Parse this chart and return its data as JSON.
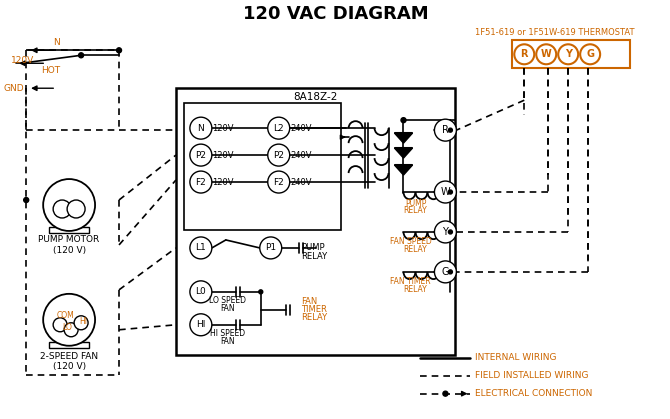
{
  "title": "120 VAC DIAGRAM",
  "title_color": "#000000",
  "title_fontsize": 14,
  "bg_color": "#ffffff",
  "line_color": "#000000",
  "orange_color": "#cc6600",
  "thermostat_label": "1F51-619 or 1F51W-619 THERMOSTAT",
  "controller_label": "8A18Z-2",
  "terminals": [
    "R",
    "W",
    "Y",
    "G"
  ],
  "pump_motor_label": "PUMP MOTOR\n(120 V)",
  "fan_label": "2-SPEED FAN\n(120 V)",
  "gnd_label": "GND",
  "hot_label": "HOT",
  "v120_label": "120V",
  "n_label": "N",
  "com_label": "COM",
  "lo_label": "LO",
  "hi_label": "HI"
}
